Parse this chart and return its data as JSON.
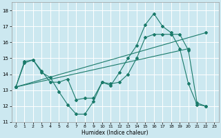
{
  "title": "",
  "xlabel": "Humidex (Indice chaleur)",
  "bg_color": "#cce8f0",
  "grid_color": "#ffffff",
  "line_color": "#1a7a6a",
  "xlim": [
    -0.5,
    23.5
  ],
  "ylim": [
    11,
    18.5
  ],
  "xticks": [
    0,
    1,
    2,
    3,
    4,
    5,
    6,
    7,
    8,
    9,
    10,
    11,
    12,
    13,
    14,
    15,
    16,
    17,
    18,
    19,
    20,
    21,
    22,
    23
  ],
  "yticks": [
    11,
    12,
    13,
    14,
    15,
    16,
    17,
    18
  ],
  "curve1_x": [
    0,
    1,
    2,
    3,
    4,
    5,
    6,
    7,
    8,
    9,
    10,
    11,
    12,
    13,
    14,
    15,
    16,
    17,
    18,
    19,
    20,
    21,
    22
  ],
  "curve1_y": [
    13.2,
    14.8,
    14.9,
    14.1,
    13.8,
    12.9,
    12.1,
    11.5,
    11.5,
    12.3,
    13.5,
    13.3,
    14.1,
    15.0,
    15.8,
    17.1,
    17.8,
    17.0,
    16.6,
    15.6,
    13.4,
    12.1,
    12.0
  ],
  "curve2_x": [
    0,
    1,
    2,
    3,
    4,
    5,
    6,
    7,
    8,
    9,
    10,
    11,
    12,
    13,
    14,
    15,
    16,
    17,
    18,
    19,
    20,
    21,
    22
  ],
  "curve2_y": [
    13.2,
    14.7,
    14.9,
    14.2,
    13.5,
    13.5,
    13.7,
    12.4,
    12.5,
    12.5,
    13.5,
    13.4,
    13.5,
    14.0,
    15.0,
    16.3,
    16.5,
    16.5,
    16.5,
    16.5,
    15.5,
    12.2,
    12.0
  ],
  "line1_x": [
    0,
    22
  ],
  "line1_y": [
    13.2,
    16.6
  ],
  "line2_x": [
    0,
    20
  ],
  "line2_y": [
    13.2,
    15.6
  ]
}
